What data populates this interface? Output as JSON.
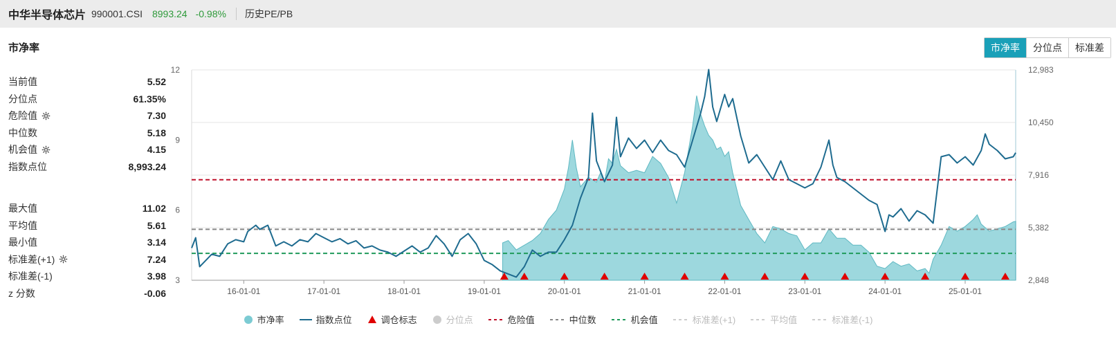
{
  "header": {
    "index_name": "中华半导体芯片",
    "index_code": "990001.CSI",
    "price": "8993.24",
    "change_pct": "-0.98%",
    "link": "历史PE/PB"
  },
  "panel_title": "市净率",
  "tabs": [
    {
      "label": "市净率",
      "active": true
    },
    {
      "label": "分位点",
      "active": false
    },
    {
      "label": "标准差",
      "active": false
    }
  ],
  "stats_top": [
    {
      "label": "当前值",
      "value": "5.52",
      "gear": false
    },
    {
      "label": "分位点",
      "value": "61.35%",
      "gear": false
    },
    {
      "label": "危险值",
      "value": "7.30",
      "gear": true
    },
    {
      "label": "中位数",
      "value": "5.18",
      "gear": false
    },
    {
      "label": "机会值",
      "value": "4.15",
      "gear": true
    },
    {
      "label": "指数点位",
      "value": "8,993.24",
      "gear": false
    }
  ],
  "stats_bottom": [
    {
      "label": "最大值",
      "value": "11.02",
      "gear": false
    },
    {
      "label": "平均值",
      "value": "5.61",
      "gear": false
    },
    {
      "label": "最小值",
      "value": "3.14",
      "gear": false
    },
    {
      "label": "标准差(+1)",
      "value": "7.24",
      "gear": true
    },
    {
      "label": "标准差(-1)",
      "value": "3.98",
      "gear": false
    },
    {
      "label": "z 分数",
      "value": "-0.06",
      "gear": false
    }
  ],
  "legend": [
    {
      "label": "市净率",
      "kind": "dot",
      "color": "#7ccbd3",
      "on": true
    },
    {
      "label": "指数点位",
      "kind": "line",
      "color": "#1e6b8f",
      "on": true
    },
    {
      "label": "调仓标志",
      "kind": "triangle",
      "color": "#e00000",
      "on": true
    },
    {
      "label": "分位点",
      "kind": "dot",
      "color": "#cccccc",
      "on": false
    },
    {
      "label": "危险值",
      "kind": "dash",
      "color": "#c0102a",
      "on": true
    },
    {
      "label": "中位数",
      "kind": "dash",
      "color": "#888888",
      "on": true
    },
    {
      "label": "机会值",
      "kind": "dash",
      "color": "#1f9a5a",
      "on": true
    },
    {
      "label": "标准差(+1)",
      "kind": "dash",
      "color": "#cccccc",
      "on": false
    },
    {
      "label": "平均值",
      "kind": "dash",
      "color": "#cccccc",
      "on": false
    },
    {
      "label": "标准差(-1)",
      "kind": "dash",
      "color": "#cccccc",
      "on": false
    }
  ],
  "chart_data": {
    "type": "line",
    "x_range": [
      2015.35,
      2025.63
    ],
    "x_ticks": [
      {
        "label": "16-01-01",
        "x": 2016.0
      },
      {
        "label": "17-01-01",
        "x": 2017.0
      },
      {
        "label": "18-01-01",
        "x": 2018.0
      },
      {
        "label": "19-01-01",
        "x": 2019.0
      },
      {
        "label": "20-01-01",
        "x": 2020.0
      },
      {
        "label": "21-01-01",
        "x": 2021.0
      },
      {
        "label": "22-01-01",
        "x": 2022.0
      },
      {
        "label": "23-01-01",
        "x": 2023.0
      },
      {
        "label": "24-01-01",
        "x": 2024.0
      },
      {
        "label": "25-01-01",
        "x": 2025.0
      }
    ],
    "y_left": {
      "range": [
        3,
        12
      ],
      "ticks": [
        "3",
        "6",
        "9",
        "12"
      ]
    },
    "y_right": {
      "range": [
        2848,
        12983
      ],
      "ticks": [
        "2,848",
        "5,382",
        "7,916",
        "10,450",
        "12,983"
      ]
    },
    "reference_lines": [
      {
        "name": "危险值",
        "value": 7.3,
        "color": "#c0102a"
      },
      {
        "name": "中位数",
        "value": 5.18,
        "color": "#888888"
      },
      {
        "name": "机会值",
        "value": 4.15,
        "color": "#1f9a5a"
      }
    ],
    "series": [
      {
        "name": "市净率",
        "axis": "left",
        "style": "area",
        "color": "#7ccbd3",
        "points": [
          [
            2019.23,
            4.6
          ],
          [
            2019.3,
            4.7
          ],
          [
            2019.4,
            4.3
          ],
          [
            2019.5,
            4.5
          ],
          [
            2019.6,
            4.7
          ],
          [
            2019.7,
            5.0
          ],
          [
            2019.8,
            5.6
          ],
          [
            2019.9,
            6.0
          ],
          [
            2020.0,
            6.9
          ],
          [
            2020.05,
            7.8
          ],
          [
            2020.1,
            9.0
          ],
          [
            2020.15,
            7.8
          ],
          [
            2020.2,
            7.0
          ],
          [
            2020.3,
            7.4
          ],
          [
            2020.4,
            7.2
          ],
          [
            2020.45,
            7.6
          ],
          [
            2020.5,
            7.2
          ],
          [
            2020.55,
            8.2
          ],
          [
            2020.6,
            8.0
          ],
          [
            2020.65,
            8.6
          ],
          [
            2020.7,
            7.9
          ],
          [
            2020.8,
            7.6
          ],
          [
            2020.9,
            7.7
          ],
          [
            2021.0,
            7.6
          ],
          [
            2021.1,
            8.3
          ],
          [
            2021.2,
            8.0
          ],
          [
            2021.3,
            7.4
          ],
          [
            2021.4,
            6.3
          ],
          [
            2021.5,
            7.6
          ],
          [
            2021.6,
            9.6
          ],
          [
            2021.65,
            10.9
          ],
          [
            2021.7,
            10.1
          ],
          [
            2021.75,
            9.6
          ],
          [
            2021.8,
            9.2
          ],
          [
            2021.85,
            9.0
          ],
          [
            2021.9,
            8.6
          ],
          [
            2021.95,
            8.7
          ],
          [
            2022.0,
            8.3
          ],
          [
            2022.05,
            8.5
          ],
          [
            2022.1,
            7.6
          ],
          [
            2022.2,
            6.2
          ],
          [
            2022.3,
            5.6
          ],
          [
            2022.4,
            5.0
          ],
          [
            2022.5,
            4.6
          ],
          [
            2022.6,
            5.3
          ],
          [
            2022.7,
            5.2
          ],
          [
            2022.8,
            5.0
          ],
          [
            2022.9,
            4.9
          ],
          [
            2023.0,
            4.3
          ],
          [
            2023.1,
            4.6
          ],
          [
            2023.2,
            4.6
          ],
          [
            2023.3,
            5.2
          ],
          [
            2023.4,
            4.8
          ],
          [
            2023.5,
            4.8
          ],
          [
            2023.6,
            4.5
          ],
          [
            2023.7,
            4.5
          ],
          [
            2023.8,
            4.2
          ],
          [
            2023.9,
            3.6
          ],
          [
            2024.0,
            3.5
          ],
          [
            2024.1,
            3.8
          ],
          [
            2024.2,
            3.6
          ],
          [
            2024.3,
            3.7
          ],
          [
            2024.4,
            3.4
          ],
          [
            2024.5,
            3.5
          ],
          [
            2024.55,
            3.3
          ],
          [
            2024.6,
            3.9
          ],
          [
            2024.7,
            4.5
          ],
          [
            2024.8,
            5.3
          ],
          [
            2024.9,
            5.1
          ],
          [
            2025.0,
            5.3
          ],
          [
            2025.1,
            5.6
          ],
          [
            2025.15,
            5.8
          ],
          [
            2025.2,
            5.4
          ],
          [
            2025.3,
            5.1
          ],
          [
            2025.4,
            5.2
          ],
          [
            2025.5,
            5.3
          ],
          [
            2025.6,
            5.5
          ],
          [
            2025.63,
            5.52
          ]
        ]
      },
      {
        "name": "指数点位",
        "axis": "right",
        "style": "line",
        "color": "#1e6b8f",
        "points": [
          [
            2015.35,
            4400
          ],
          [
            2015.4,
            4900
          ],
          [
            2015.45,
            3500
          ],
          [
            2015.5,
            3700
          ],
          [
            2015.6,
            4100
          ],
          [
            2015.7,
            4000
          ],
          [
            2015.8,
            4600
          ],
          [
            2015.9,
            4800
          ],
          [
            2016.0,
            4700
          ],
          [
            2016.05,
            5200
          ],
          [
            2016.15,
            5500
          ],
          [
            2016.2,
            5300
          ],
          [
            2016.3,
            5500
          ],
          [
            2016.4,
            4500
          ],
          [
            2016.5,
            4700
          ],
          [
            2016.6,
            4500
          ],
          [
            2016.7,
            4800
          ],
          [
            2016.8,
            4700
          ],
          [
            2016.9,
            5100
          ],
          [
            2017.0,
            4900
          ],
          [
            2017.1,
            4700
          ],
          [
            2017.2,
            4850
          ],
          [
            2017.3,
            4600
          ],
          [
            2017.4,
            4750
          ],
          [
            2017.5,
            4400
          ],
          [
            2017.6,
            4500
          ],
          [
            2017.7,
            4300
          ],
          [
            2017.8,
            4200
          ],
          [
            2017.9,
            4000
          ],
          [
            2018.0,
            4250
          ],
          [
            2018.1,
            4500
          ],
          [
            2018.2,
            4200
          ],
          [
            2018.3,
            4400
          ],
          [
            2018.4,
            5000
          ],
          [
            2018.5,
            4600
          ],
          [
            2018.6,
            4000
          ],
          [
            2018.7,
            4800
          ],
          [
            2018.8,
            5100
          ],
          [
            2018.9,
            4600
          ],
          [
            2019.0,
            3800
          ],
          [
            2019.1,
            3600
          ],
          [
            2019.2,
            3300
          ],
          [
            2019.3,
            3150
          ],
          [
            2019.4,
            3000
          ],
          [
            2019.5,
            3500
          ],
          [
            2019.6,
            4300
          ],
          [
            2019.7,
            4000
          ],
          [
            2019.8,
            4200
          ],
          [
            2019.9,
            4200
          ],
          [
            2020.0,
            4800
          ],
          [
            2020.1,
            5500
          ],
          [
            2020.2,
            6800
          ],
          [
            2020.3,
            7800
          ],
          [
            2020.35,
            10900
          ],
          [
            2020.4,
            8600
          ],
          [
            2020.5,
            7600
          ],
          [
            2020.6,
            8400
          ],
          [
            2020.65,
            10700
          ],
          [
            2020.7,
            8800
          ],
          [
            2020.8,
            9700
          ],
          [
            2020.9,
            9200
          ],
          [
            2021.0,
            9600
          ],
          [
            2021.1,
            9000
          ],
          [
            2021.2,
            9600
          ],
          [
            2021.3,
            9100
          ],
          [
            2021.4,
            8900
          ],
          [
            2021.5,
            8300
          ],
          [
            2021.6,
            9600
          ],
          [
            2021.7,
            10900
          ],
          [
            2021.75,
            11700
          ],
          [
            2021.8,
            13000
          ],
          [
            2021.85,
            11200
          ],
          [
            2021.9,
            10500
          ],
          [
            2022.0,
            11800
          ],
          [
            2022.05,
            11200
          ],
          [
            2022.1,
            11600
          ],
          [
            2022.2,
            9800
          ],
          [
            2022.3,
            8500
          ],
          [
            2022.4,
            8900
          ],
          [
            2022.5,
            8300
          ],
          [
            2022.6,
            7700
          ],
          [
            2022.7,
            8600
          ],
          [
            2022.8,
            7700
          ],
          [
            2022.9,
            7500
          ],
          [
            2023.0,
            7300
          ],
          [
            2023.1,
            7500
          ],
          [
            2023.2,
            8300
          ],
          [
            2023.3,
            9600
          ],
          [
            2023.35,
            8400
          ],
          [
            2023.4,
            7800
          ],
          [
            2023.5,
            7600
          ],
          [
            2023.6,
            7300
          ],
          [
            2023.7,
            7000
          ],
          [
            2023.8,
            6700
          ],
          [
            2023.9,
            6500
          ],
          [
            2024.0,
            5200
          ],
          [
            2024.05,
            6000
          ],
          [
            2024.1,
            5900
          ],
          [
            2024.2,
            6300
          ],
          [
            2024.3,
            5700
          ],
          [
            2024.4,
            6200
          ],
          [
            2024.5,
            6000
          ],
          [
            2024.6,
            5600
          ],
          [
            2024.7,
            8800
          ],
          [
            2024.8,
            8900
          ],
          [
            2024.9,
            8500
          ],
          [
            2025.0,
            8800
          ],
          [
            2025.1,
            8400
          ],
          [
            2025.2,
            9100
          ],
          [
            2025.25,
            9900
          ],
          [
            2025.3,
            9400
          ],
          [
            2025.4,
            9100
          ],
          [
            2025.5,
            8700
          ],
          [
            2025.6,
            8800
          ],
          [
            2025.63,
            8993
          ]
        ]
      }
    ],
    "markers": {
      "name": "调仓标志",
      "x": [
        2019.25,
        2019.5,
        2020.0,
        2020.5,
        2021.0,
        2021.5,
        2022.0,
        2022.5,
        2023.0,
        2023.5,
        2024.0,
        2024.5,
        2025.0,
        2025.5
      ]
    }
  }
}
